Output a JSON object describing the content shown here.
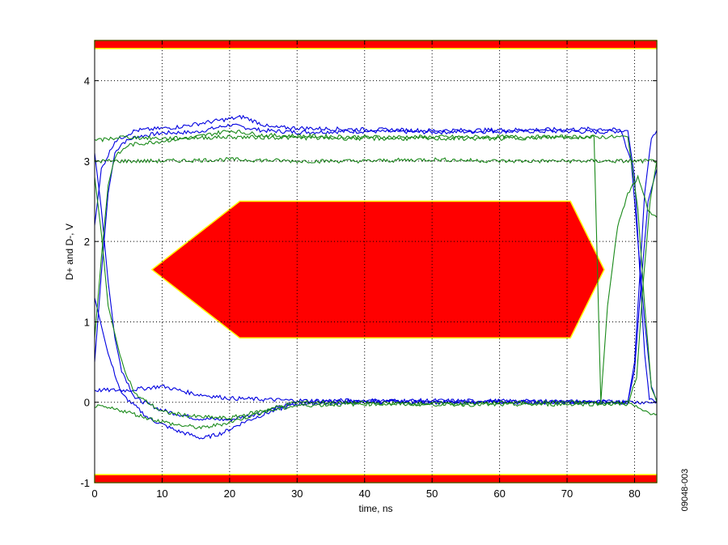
{
  "chart_data": {
    "type": "line",
    "title": "",
    "xlabel": "time, ns",
    "ylabel": "D+ and D-, V",
    "xlim": [
      0,
      83.3
    ],
    "ylim": [
      -1,
      4.5
    ],
    "x_ticks": [
      0,
      10,
      20,
      30,
      40,
      50,
      60,
      70,
      80
    ],
    "y_ticks": [
      -1,
      0,
      1,
      2,
      3,
      4
    ],
    "x_tick_labels": [
      "0",
      "10",
      "20",
      "30",
      "40",
      "50",
      "60",
      "70",
      "80"
    ],
    "y_tick_labels": [
      "-1",
      "0",
      "1",
      "2",
      "3",
      "4"
    ],
    "grid": true,
    "figure_id": "09048-003",
    "colors": {
      "mask_fill": "#ff0000",
      "mask_edge": "#ffff00",
      "trace_blue": "#0000e0",
      "trace_green": "#1a8a1a",
      "grid": "#000000"
    },
    "masks": {
      "top_band": {
        "y_min": 4.4,
        "y_max": 4.5
      },
      "bottom_band": {
        "y_min": -1.0,
        "y_max": -0.9
      },
      "center_polygon": [
        [
          8.5,
          1.65
        ],
        [
          21.5,
          2.5
        ],
        [
          70.5,
          2.5
        ],
        [
          75.5,
          1.65
        ],
        [
          70.5,
          0.8
        ],
        [
          21.5,
          0.8
        ]
      ]
    },
    "series": [
      {
        "color": "blue",
        "traces": [
          [
            [
              0,
              0.5
            ],
            [
              1,
              1.6
            ],
            [
              2,
              2.6
            ],
            [
              3,
              3.1
            ],
            [
              4,
              3.22
            ],
            [
              6,
              3.3
            ],
            [
              10,
              3.35
            ],
            [
              15,
              3.36
            ],
            [
              20,
              3.45
            ],
            [
              25,
              3.38
            ],
            [
              30,
              3.36
            ],
            [
              40,
              3.37
            ],
            [
              50,
              3.36
            ],
            [
              60,
              3.37
            ],
            [
              70,
              3.37
            ],
            [
              75,
              3.36
            ],
            [
              79,
              3.38
            ],
            [
              80,
              2.8
            ],
            [
              80.8,
              1.6
            ],
            [
              81.5,
              0.6
            ],
            [
              82.2,
              0.05
            ],
            [
              83.3,
              0.0
            ]
          ],
          [
            [
              0,
              3.1
            ],
            [
              1,
              2.4
            ],
            [
              2,
              1.5
            ],
            [
              3,
              0.8
            ],
            [
              4,
              0.4
            ],
            [
              6,
              0.05
            ],
            [
              10,
              -0.1
            ],
            [
              15,
              -0.2
            ],
            [
              20,
              -0.22
            ],
            [
              25,
              -0.12
            ],
            [
              30,
              0.0
            ],
            [
              40,
              0.02
            ],
            [
              50,
              0.0
            ],
            [
              60,
              0.01
            ],
            [
              70,
              0.0
            ],
            [
              79,
              0.0
            ],
            [
              80,
              0.5
            ],
            [
              80.8,
              1.6
            ],
            [
              81.5,
              2.6
            ],
            [
              82.5,
              3.3
            ],
            [
              83.3,
              3.38
            ]
          ],
          [
            [
              0,
              1.3
            ],
            [
              2,
              0.6
            ],
            [
              4,
              0.1
            ],
            [
              8,
              -0.2
            ],
            [
              12,
              -0.35
            ],
            [
              16,
              -0.45
            ],
            [
              19,
              -0.38
            ],
            [
              22,
              -0.25
            ],
            [
              26,
              -0.12
            ],
            [
              30,
              -0.02
            ],
            [
              40,
              0.0
            ],
            [
              60,
              0.0
            ],
            [
              79,
              0.0
            ],
            [
              80,
              0.4
            ],
            [
              81,
              1.5
            ],
            [
              82,
              2.5
            ],
            [
              83.3,
              2.9
            ]
          ],
          [
            [
              0,
              2.2
            ],
            [
              1,
              2.9
            ],
            [
              3,
              3.25
            ],
            [
              6,
              3.38
            ],
            [
              12,
              3.42
            ],
            [
              18,
              3.5
            ],
            [
              22,
              3.55
            ],
            [
              26,
              3.42
            ],
            [
              35,
              3.4
            ],
            [
              50,
              3.38
            ],
            [
              65,
              3.39
            ],
            [
              75,
              3.4
            ],
            [
              78,
              3.38
            ],
            [
              79.5,
              3.0
            ],
            [
              80.5,
              2.0
            ],
            [
              81.5,
              1.0
            ],
            [
              82.5,
              0.2
            ],
            [
              83.3,
              0.02
            ]
          ],
          [
            [
              0,
              0.15
            ],
            [
              5,
              0.15
            ],
            [
              10,
              0.2
            ],
            [
              15,
              0.1
            ],
            [
              20,
              0.05
            ],
            [
              30,
              0.02
            ],
            [
              50,
              0.02
            ],
            [
              70,
              0.01
            ],
            [
              83.3,
              0.0
            ]
          ]
        ]
      },
      {
        "color": "green",
        "traces": [
          [
            [
              0,
              0.8
            ],
            [
              1,
              1.8
            ],
            [
              2,
              2.7
            ],
            [
              3,
              3.05
            ],
            [
              5,
              3.2
            ],
            [
              10,
              3.25
            ],
            [
              15,
              3.3
            ],
            [
              20,
              3.38
            ],
            [
              25,
              3.32
            ],
            [
              40,
              3.3
            ],
            [
              60,
              3.3
            ],
            [
              75,
              3.3
            ],
            [
              79,
              3.3
            ],
            [
              80.5,
              2.4
            ],
            [
              81.5,
              1.2
            ],
            [
              82.5,
              0.2
            ],
            [
              83.3,
              0.0
            ]
          ],
          [
            [
              0,
              2.8
            ],
            [
              1,
              2.1
            ],
            [
              2,
              1.2
            ],
            [
              4,
              0.5
            ],
            [
              6,
              0.1
            ],
            [
              10,
              -0.12
            ],
            [
              15,
              -0.18
            ],
            [
              20,
              -0.2
            ],
            [
              25,
              -0.1
            ],
            [
              30,
              0.0
            ],
            [
              50,
              -0.02
            ],
            [
              70,
              0.0
            ],
            [
              79,
              -0.02
            ],
            [
              80.3,
              0.3
            ],
            [
              81.3,
              1.5
            ],
            [
              82.3,
              2.5
            ],
            [
              83.3,
              3.0
            ]
          ],
          [
            [
              0,
              3.0
            ],
            [
              10,
              3.0
            ],
            [
              20,
              3.02
            ],
            [
              30,
              3.0
            ],
            [
              40,
              3.0
            ],
            [
              50,
              3.02
            ],
            [
              60,
              3.0
            ],
            [
              70,
              3.0
            ],
            [
              80,
              3.0
            ],
            [
              83.3,
              3.0
            ]
          ],
          [
            [
              0,
              -0.05
            ],
            [
              4,
              -0.1
            ],
            [
              8,
              -0.2
            ],
            [
              12,
              -0.28
            ],
            [
              16,
              -0.32
            ],
            [
              20,
              -0.25
            ],
            [
              25,
              -0.12
            ],
            [
              30,
              -0.04
            ],
            [
              40,
              -0.02
            ],
            [
              60,
              -0.03
            ],
            [
              75,
              -0.02
            ],
            [
              79,
              0.0
            ],
            [
              81,
              -0.1
            ],
            [
              83.3,
              -0.15
            ]
          ],
          [
            [
              0,
              3.25
            ],
            [
              4,
              3.3
            ],
            [
              10,
              3.28
            ],
            [
              20,
              3.3
            ],
            [
              40,
              3.28
            ],
            [
              60,
              3.28
            ],
            [
              70,
              3.3
            ],
            [
              74,
              3.3
            ],
            [
              75,
              0.0
            ],
            [
              76,
              1.2
            ],
            [
              77.5,
              2.2
            ],
            [
              79,
              2.6
            ],
            [
              80.5,
              2.8
            ],
            [
              82,
              2.4
            ],
            [
              83.3,
              2.3
            ]
          ]
        ]
      }
    ]
  }
}
